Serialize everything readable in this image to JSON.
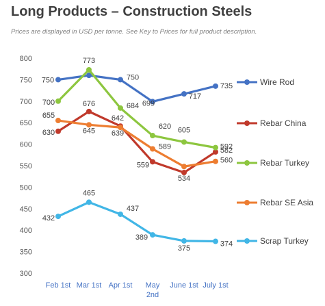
{
  "title": "Long Products –  Construction Steels",
  "subtitle": "Prices are displayed in USD per tonne. See Key to Prices for full product description.",
  "chart_data": {
    "type": "line",
    "categories": [
      "Feb 1st",
      "Mar 1st",
      "Apr 1st",
      "May 2nd",
      "June 1st",
      "July 1st"
    ],
    "ylim": [
      300,
      800
    ],
    "yticks": [
      800,
      750,
      700,
      650,
      600,
      550,
      500,
      450,
      400,
      350,
      300
    ],
    "grid": false,
    "legend_position": "right",
    "series": [
      {
        "name": "Wire Rod",
        "color": "#4472C4",
        "values": [
          750,
          760,
          750,
          699,
          717,
          735
        ],
        "labels": [
          "750",
          "",
          "750",
          "699",
          "717",
          "735"
        ]
      },
      {
        "name": "Rebar China",
        "color": "#C0392B",
        "values": [
          630,
          676,
          642,
          559,
          534,
          582
        ],
        "labels": [
          "630",
          "676",
          "642",
          "559",
          "534",
          "582"
        ]
      },
      {
        "name": "Rebar Turkey",
        "color": "#8DC63F",
        "values": [
          700,
          773,
          684,
          620,
          605,
          592
        ],
        "labels": [
          "700",
          "773",
          "684",
          "620",
          "605",
          "592"
        ]
      },
      {
        "name": "Rebar SE Asia",
        "color": "#ED7D31",
        "values": [
          655,
          645,
          639,
          589,
          548,
          560
        ],
        "labels": [
          "655",
          "645",
          "639",
          "589",
          "",
          "560"
        ]
      },
      {
        "name": "Scrap Turkey",
        "color": "#41B6E6",
        "values": [
          432,
          465,
          437,
          389,
          375,
          374
        ],
        "labels": [
          "432",
          "465",
          "437",
          "389",
          "375",
          "374"
        ]
      }
    ]
  }
}
